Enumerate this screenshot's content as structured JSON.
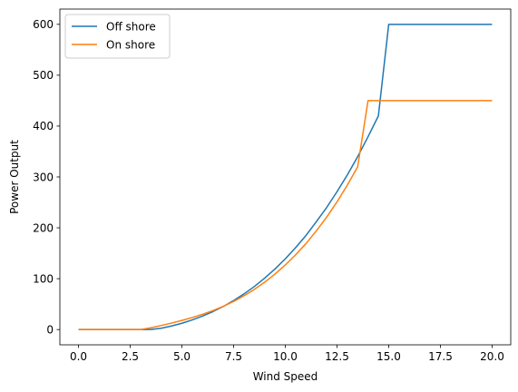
{
  "chart_data": {
    "type": "line",
    "xlabel": "Wind Speed",
    "ylabel": "Power Output",
    "xlim": [
      -0.9,
      20.9
    ],
    "ylim": [
      -30,
      630
    ],
    "xticks": [
      0.0,
      2.5,
      5.0,
      7.5,
      10.0,
      12.5,
      15.0,
      17.5,
      20.0
    ],
    "xtick_labels": [
      "0.0",
      "2.5",
      "5.0",
      "7.5",
      "10.0",
      "12.5",
      "15.0",
      "17.5",
      "20.0"
    ],
    "yticks": [
      0,
      100,
      200,
      300,
      400,
      500,
      600
    ],
    "ytick_labels": [
      "0",
      "100",
      "200",
      "300",
      "400",
      "500",
      "600"
    ],
    "grid": false,
    "legend": "top-left",
    "series": [
      {
        "name": "Off shore",
        "color": "#1f77b4",
        "x": [
          0,
          3.5,
          4,
          4.5,
          5,
          5.5,
          6,
          6.5,
          7,
          7.5,
          8,
          8.5,
          9,
          9.5,
          10,
          10.5,
          11,
          11.5,
          12,
          12.5,
          13,
          13.5,
          14,
          14.5,
          15,
          20
        ],
        "y": [
          0,
          0,
          2.5,
          7,
          12.4,
          18.9,
          26.5,
          35.3,
          45.4,
          57,
          70,
          84.5,
          101,
          119,
          139,
          161,
          185,
          212,
          240,
          271,
          304,
          340,
          379,
          420,
          600,
          600
        ]
      },
      {
        "name": "On shore",
        "color": "#ff7f0e",
        "x": [
          0,
          3,
          3.5,
          4,
          4.5,
          5,
          5.5,
          6,
          6.5,
          7,
          7.5,
          8,
          8.5,
          9,
          9.5,
          10,
          10.5,
          11,
          11.5,
          12,
          12.5,
          13,
          13.5,
          14,
          20
        ],
        "y": [
          0,
          0,
          3.5,
          8,
          12.7,
          17.9,
          23.6,
          30,
          37.3,
          45.7,
          55.3,
          66.3,
          78.8,
          93,
          109,
          127,
          147,
          169,
          194,
          221,
          251,
          284,
          320,
          450,
          450
        ]
      }
    ]
  }
}
